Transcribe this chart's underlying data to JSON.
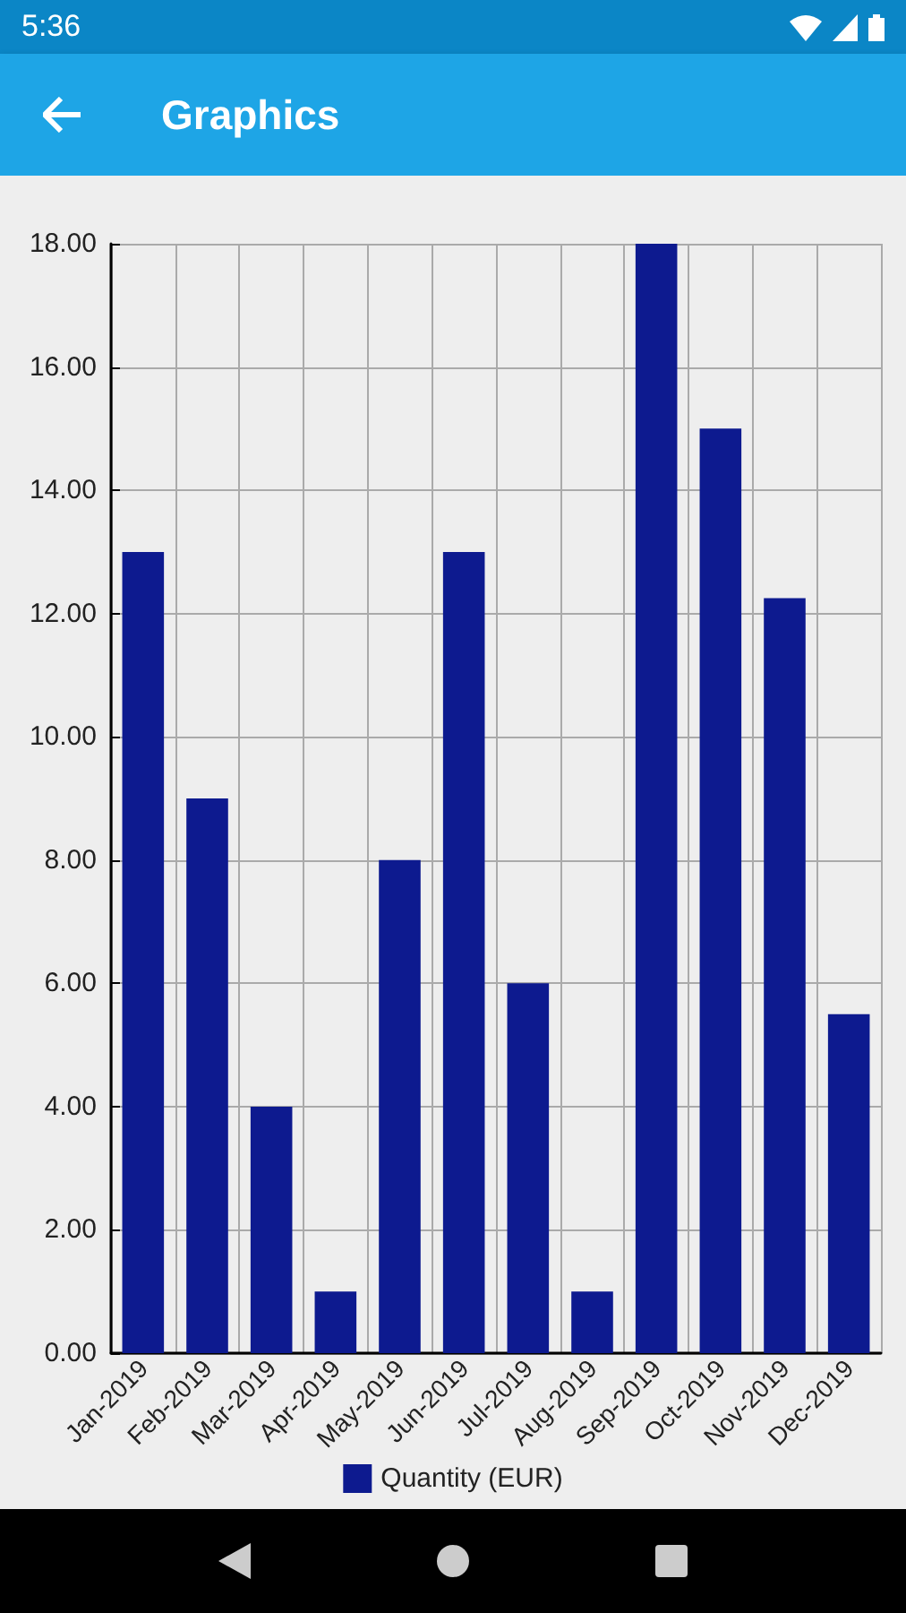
{
  "chart_data": {
    "type": "bar",
    "title": "Graphics",
    "annotations": [
      "5:36"
    ],
    "categories": [
      "Jan-2019",
      "Feb-2019",
      "Mar-2019",
      "Apr-2019",
      "May-2019",
      "Jun-2019",
      "Jul-2019",
      "Aug-2019",
      "Sep-2019",
      "Oct-2019",
      "Nov-2019",
      "Dec-2019"
    ],
    "series": [
      {
        "name": "Quantity (EUR)",
        "color": "#0d1a8f",
        "values": [
          13,
          9,
          4,
          1,
          8,
          13,
          6,
          1,
          18,
          15,
          12.25,
          5.5
        ]
      }
    ],
    "ylim": [
      0,
      18
    ],
    "yticks": [
      {
        "value": 0,
        "label": "0.00"
      },
      {
        "value": 2,
        "label": "2.00"
      },
      {
        "value": 4,
        "label": "4.00"
      },
      {
        "value": 6,
        "label": "6.00"
      },
      {
        "value": 8,
        "label": "8.00"
      },
      {
        "value": 10,
        "label": "10.00"
      },
      {
        "value": 12,
        "label": "12.00"
      },
      {
        "value": 14,
        "label": "14.00"
      },
      {
        "value": 16,
        "label": "16.00"
      },
      {
        "value": 18,
        "label": "18.00"
      }
    ],
    "grid": true,
    "legend": "bottom"
  }
}
